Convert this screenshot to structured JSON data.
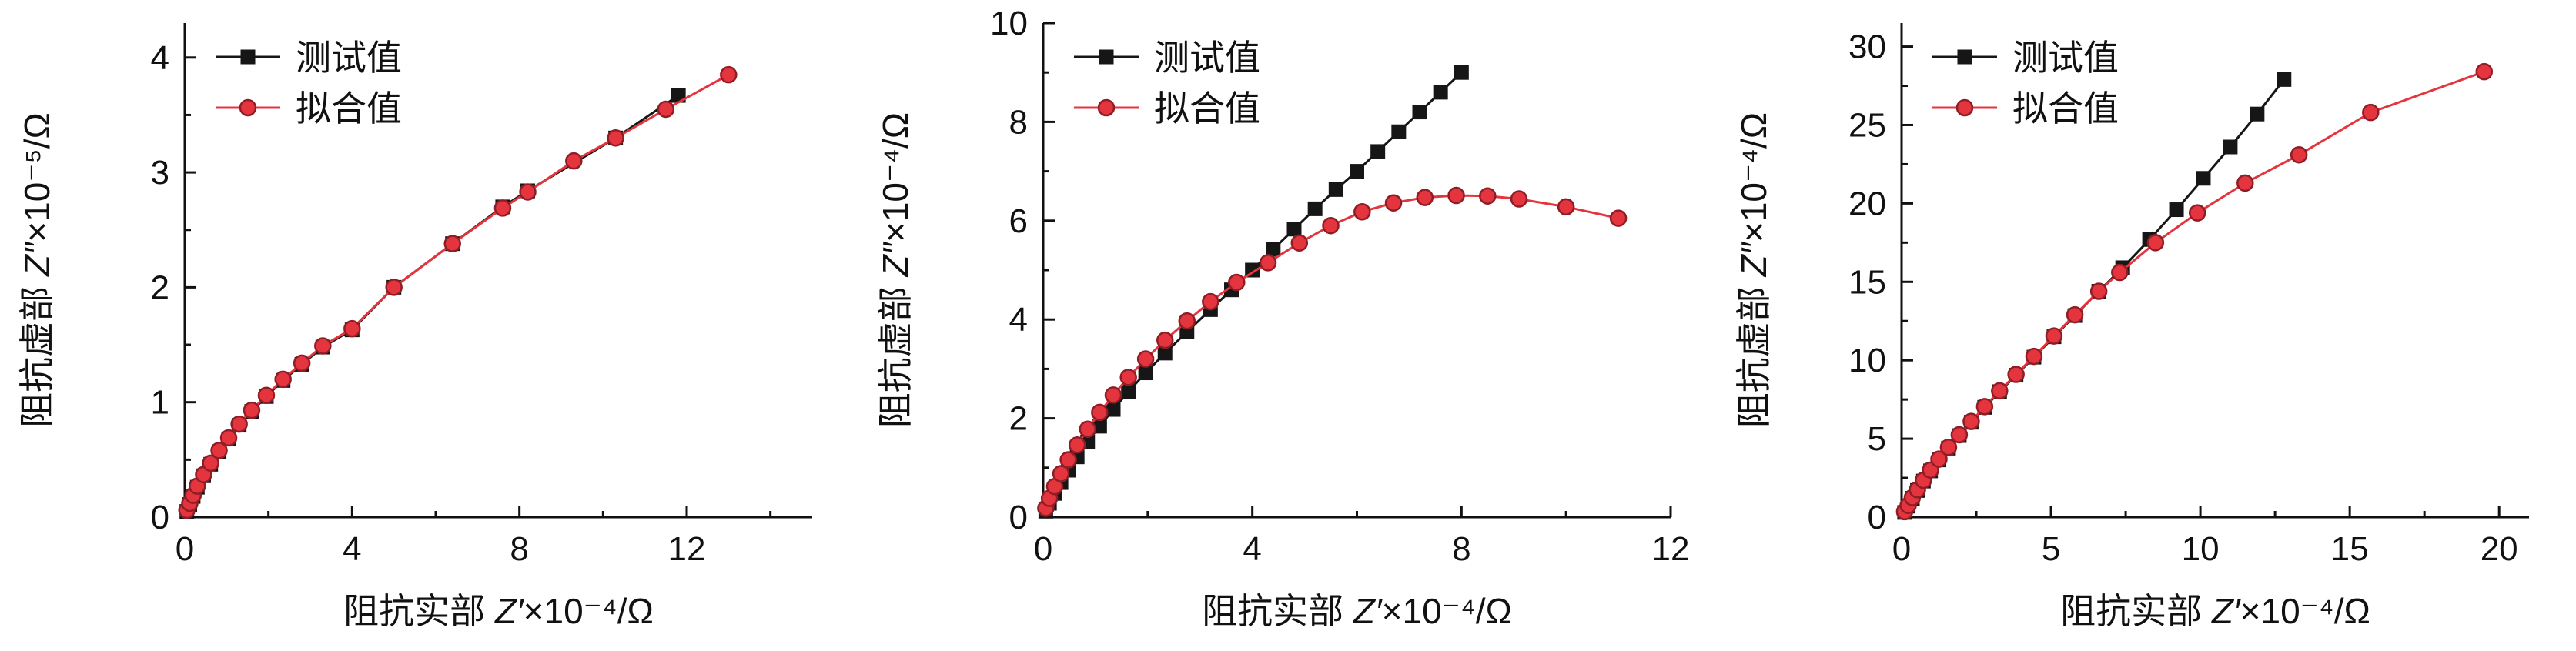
{
  "figure": {
    "background": "#ffffff",
    "panel_count": 3
  },
  "style": {
    "axis_color": "#111111",
    "text_color": "#111111",
    "measured_color": "#161616",
    "fit_color": "#e4353f",
    "fit_edge_color": "#8f1d26",
    "tick_font_size": 44,
    "label_font_size": 46,
    "legend_font_size": 46
  },
  "chart_data": [
    {
      "type": "line",
      "title": "",
      "xlabel": {
        "prefix": "阻抗实部 ",
        "var": "Z′",
        "suffix": "×10⁻⁴/Ω"
      },
      "ylabel": {
        "prefix": "阻抗虚部 ",
        "var": "Z″",
        "suffix": "×10⁻⁵/Ω"
      },
      "xlim": [
        0,
        15
      ],
      "ylim": [
        0,
        4.3
      ],
      "xticks": [
        0,
        4,
        8,
        12
      ],
      "yticks": [
        0,
        1,
        2,
        3,
        4
      ],
      "xminor": 2,
      "yminor": 0.5,
      "grid": false,
      "legend_position": "top-left",
      "series": [
        {
          "name": "测试值",
          "marker": "square",
          "color": "#161616",
          "edge": "#161616",
          "x": [
            0.05,
            0.12,
            0.2,
            0.3,
            0.45,
            0.62,
            0.82,
            1.05,
            1.3,
            1.6,
            1.95,
            2.35,
            2.8,
            3.3,
            4.0,
            5.0,
            6.4,
            7.6,
            8.2,
            10.3,
            11.8
          ],
          "y": [
            0.05,
            0.11,
            0.18,
            0.26,
            0.36,
            0.46,
            0.57,
            0.68,
            0.8,
            0.92,
            1.05,
            1.19,
            1.33,
            1.48,
            1.63,
            2.0,
            2.38,
            2.7,
            2.84,
            3.3,
            3.67
          ]
        },
        {
          "name": "拟合值",
          "marker": "circle",
          "color": "#e4353f",
          "edge": "#8f1d26",
          "x": [
            0.05,
            0.12,
            0.2,
            0.3,
            0.45,
            0.62,
            0.82,
            1.05,
            1.3,
            1.6,
            1.95,
            2.35,
            2.8,
            3.3,
            4.0,
            5.0,
            6.4,
            7.6,
            8.2,
            9.3,
            10.3,
            11.5,
            13.0
          ],
          "y": [
            0.06,
            0.12,
            0.19,
            0.27,
            0.37,
            0.47,
            0.58,
            0.69,
            0.81,
            0.93,
            1.06,
            1.2,
            1.34,
            1.49,
            1.64,
            2.0,
            2.38,
            2.69,
            2.83,
            3.1,
            3.3,
            3.55,
            3.85
          ]
        }
      ]
    },
    {
      "type": "line",
      "title": "",
      "xlabel": {
        "prefix": "阻抗实部 ",
        "var": "Z′",
        "suffix": "×10⁻⁴/Ω"
      },
      "ylabel": {
        "prefix": "阻抗虚部 ",
        "var": "Z″",
        "suffix": "×10⁻⁴/Ω"
      },
      "xlim": [
        0,
        12
      ],
      "ylim": [
        0,
        10
      ],
      "xticks": [
        0,
        4,
        8,
        12
      ],
      "yticks": [
        0,
        2,
        4,
        6,
        8,
        10
      ],
      "xminor": 2,
      "yminor": 1,
      "grid": false,
      "legend_position": "top-left",
      "series": [
        {
          "name": "测试值",
          "marker": "square",
          "color": "#161616",
          "edge": "#161616",
          "x": [
            0.05,
            0.12,
            0.22,
            0.34,
            0.48,
            0.65,
            0.85,
            1.08,
            1.34,
            1.63,
            1.96,
            2.33,
            2.75,
            3.2,
            3.6,
            4.0,
            4.4,
            4.8,
            5.2,
            5.6,
            6.0,
            6.4,
            6.8,
            7.2,
            7.6,
            8.0
          ],
          "y": [
            0.12,
            0.28,
            0.48,
            0.7,
            0.95,
            1.22,
            1.52,
            1.84,
            2.18,
            2.54,
            2.92,
            3.32,
            3.75,
            4.2,
            4.6,
            5.0,
            5.42,
            5.83,
            6.24,
            6.63,
            7.0,
            7.4,
            7.8,
            8.2,
            8.6,
            9.0
          ]
        },
        {
          "name": "拟合值",
          "marker": "circle",
          "color": "#e4353f",
          "edge": "#8f1d26",
          "x": [
            0.05,
            0.12,
            0.22,
            0.34,
            0.48,
            0.65,
            0.85,
            1.08,
            1.34,
            1.63,
            1.96,
            2.33,
            2.75,
            3.2,
            3.7,
            4.3,
            4.9,
            5.5,
            6.1,
            6.7,
            7.3,
            7.9,
            8.5,
            9.1,
            10.0,
            11.0
          ],
          "y": [
            0.18,
            0.38,
            0.62,
            0.88,
            1.16,
            1.46,
            1.78,
            2.12,
            2.47,
            2.83,
            3.2,
            3.58,
            3.97,
            4.36,
            4.75,
            5.15,
            5.55,
            5.9,
            6.18,
            6.36,
            6.47,
            6.51,
            6.5,
            6.44,
            6.28,
            6.05
          ]
        }
      ]
    },
    {
      "type": "line",
      "title": "",
      "xlabel": {
        "prefix": "阻抗实部 ",
        "var": "Z′",
        "suffix": "×10⁻⁴/Ω"
      },
      "ylabel": {
        "prefix": "阻抗虚部 ",
        "var": "Z″",
        "suffix": "×10⁻⁴/Ω"
      },
      "xlim": [
        0,
        21
      ],
      "ylim": [
        0,
        31.5
      ],
      "xticks": [
        0,
        5,
        10,
        15,
        20
      ],
      "yticks": [
        0,
        5,
        10,
        15,
        20,
        25,
        30
      ],
      "xminor": 2.5,
      "yminor": 2.5,
      "grid": false,
      "legend_position": "top-left",
      "series": [
        {
          "name": "测试值",
          "marker": "square",
          "color": "#161616",
          "edge": "#161616",
          "x": [
            0.1,
            0.22,
            0.36,
            0.53,
            0.73,
            0.97,
            1.25,
            1.57,
            1.93,
            2.33,
            2.78,
            3.28,
            3.83,
            4.43,
            5.1,
            5.8,
            6.6,
            7.4,
            8.3,
            9.2,
            10.1,
            11.0,
            11.9,
            12.8
          ],
          "y": [
            0.3,
            0.7,
            1.2,
            1.7,
            2.3,
            2.95,
            3.65,
            4.4,
            5.2,
            6.05,
            7.0,
            8.0,
            9.05,
            10.2,
            11.5,
            12.85,
            14.4,
            15.9,
            17.7,
            19.6,
            21.6,
            23.6,
            25.7,
            27.9
          ]
        },
        {
          "name": "拟合值",
          "marker": "circle",
          "color": "#e4353f",
          "edge": "#8f1d26",
          "x": [
            0.1,
            0.22,
            0.36,
            0.53,
            0.73,
            0.97,
            1.25,
            1.57,
            1.93,
            2.33,
            2.78,
            3.28,
            3.83,
            4.43,
            5.1,
            5.8,
            6.6,
            7.3,
            8.5,
            9.9,
            11.5,
            13.3,
            15.7,
            19.5
          ],
          "y": [
            0.35,
            0.75,
            1.25,
            1.75,
            2.35,
            3.0,
            3.7,
            4.45,
            5.25,
            6.1,
            7.05,
            8.05,
            9.1,
            10.25,
            11.55,
            12.9,
            14.4,
            15.6,
            17.5,
            19.4,
            21.3,
            23.1,
            25.8,
            28.4
          ]
        }
      ]
    }
  ]
}
